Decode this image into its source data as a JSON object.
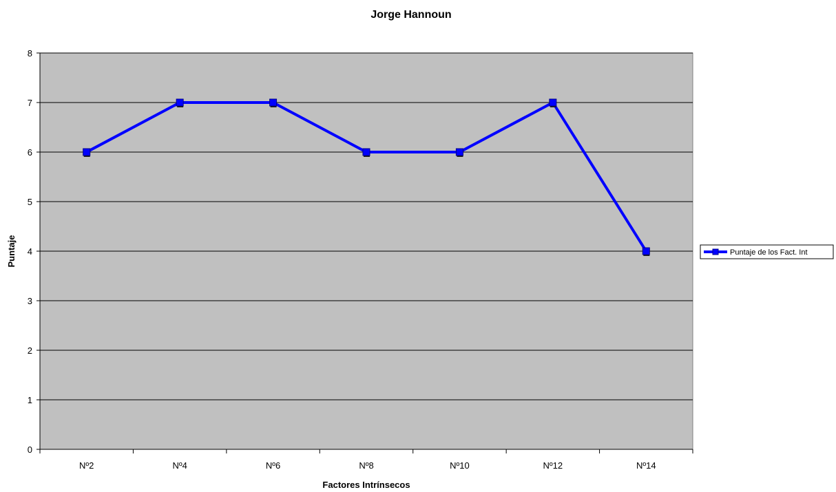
{
  "chart_data": {
    "type": "line",
    "title": "Jorge Hannoun",
    "xlabel": "Factores Intrínsecos",
    "ylabel": "Puntaje",
    "categories": [
      "Nº2",
      "Nº4",
      "Nº6",
      "Nº8",
      "Nº10",
      "Nº12",
      "Nº14"
    ],
    "series": [
      {
        "name": "Puntaje de los Fact. Int",
        "values": [
          6,
          7,
          7,
          6,
          6,
          7,
          4
        ],
        "color": "#0000ff",
        "marker": "square"
      }
    ],
    "ylim": [
      0,
      8
    ],
    "yticks": [
      "0",
      "1",
      "2",
      "3",
      "4",
      "5",
      "6",
      "7",
      "8"
    ],
    "grid": true,
    "plot_background": "#c0c0c0",
    "legend_position": "right"
  }
}
